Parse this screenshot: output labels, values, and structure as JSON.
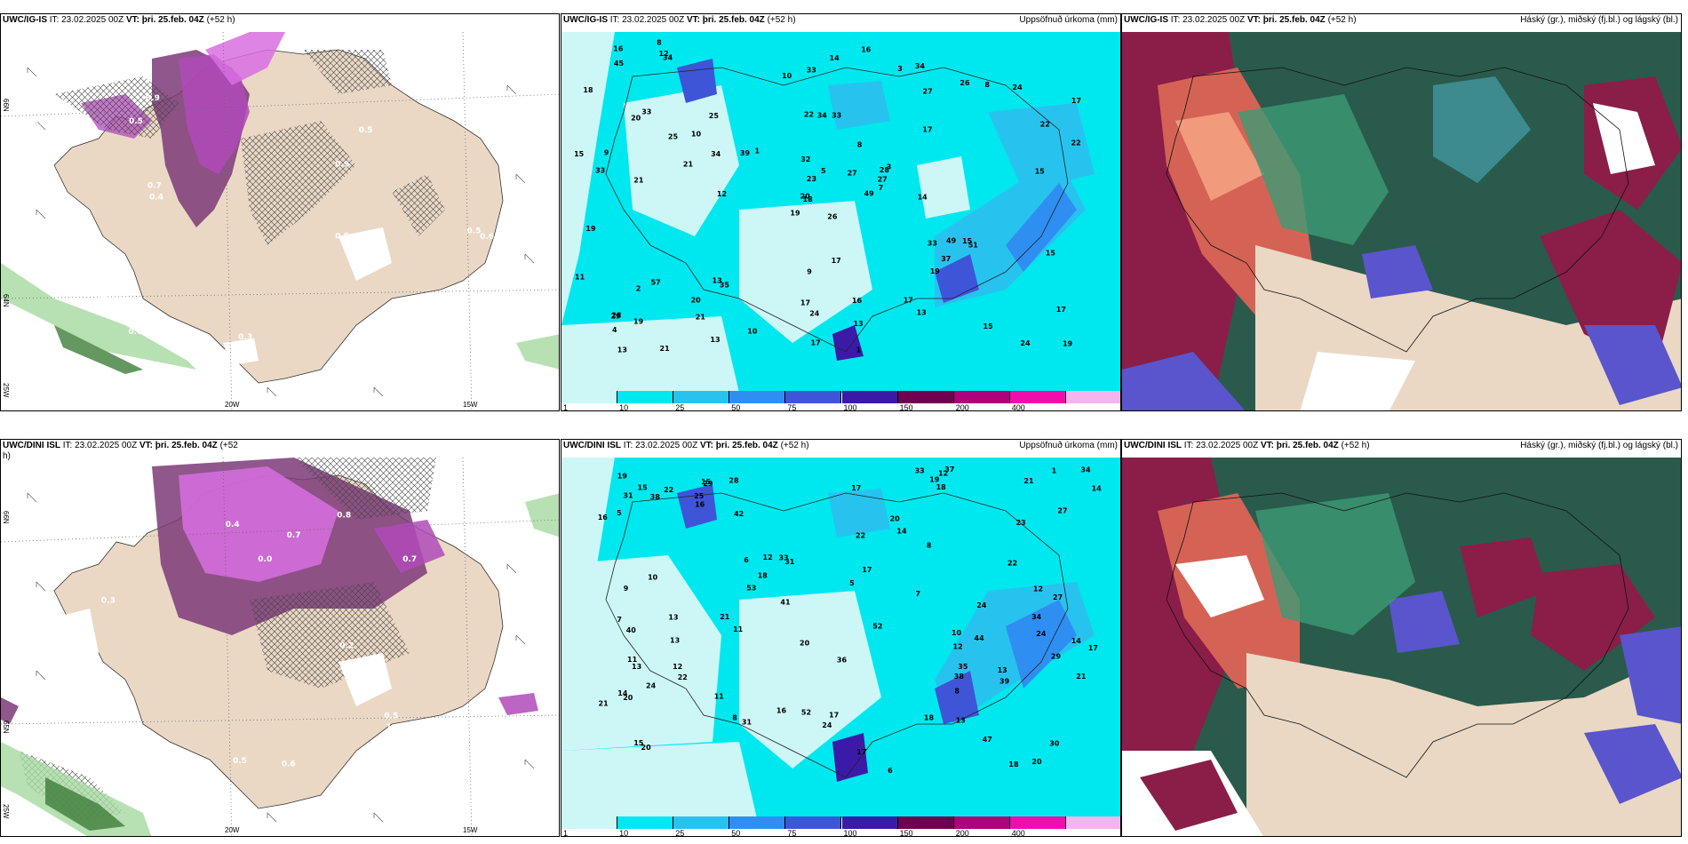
{
  "panels": {
    "ig_wind": {
      "model": "UWC/IG-IS",
      "run": "IT: 23.02.2025 00Z",
      "valid": "VT: þri. 25.feb. 04Z",
      "lead": "(+52 h)"
    },
    "ig_precip": {
      "model": "UWC/IG-IS",
      "run": "IT: 23.02.2025 00Z",
      "valid": "VT: þri. 25.feb. 04Z",
      "lead": "(+52 h)",
      "right_title": "Uppsöfnuð úrkoma (mm)"
    },
    "ig_cloud": {
      "model": "UWC/IG-IS",
      "run": "IT: 23.02.2025 00Z",
      "valid": "VT: þri. 25.feb. 04Z",
      "lead": "(+52 h)",
      "right_title": "Háský (gr.), miðský (fj.bl.) og lágský (bl.)"
    },
    "dini_wind": {
      "model": "UWC/DINI ISL",
      "run": "IT: 23.02.2025 00Z",
      "valid": "VT: þri. 25.feb. 04Z",
      "lead": "(+52",
      "lead2": "h)"
    },
    "dini_precip": {
      "model": "UWC/DINI ISL",
      "run": "IT: 23.02.2025 00Z",
      "valid": "VT: þri. 25.feb. 04Z",
      "lead": "(+52 h)",
      "right_title": "Uppsöfnuð úrkoma (mm)"
    },
    "dini_cloud": {
      "model": "UWC/DINI ISL",
      "run": "IT: 23.02.2025 00Z",
      "valid": "VT: þri. 25.feb. 04Z",
      "lead": "(+52 h)",
      "right_title": "Háský (gr.), miðský (fj.bl.) og lágský (bl.)"
    }
  },
  "axes": {
    "lon_20w": "20W",
    "lon_15w": "15W",
    "lat_66n": "66N",
    "lat_64n": "64N",
    "lat_65n": "65N",
    "lat_25w": "25W"
  },
  "colorbar": {
    "levels": [
      "1",
      "10",
      "25",
      "50",
      "75",
      "100",
      "150",
      "200",
      "400"
    ],
    "colors": [
      "#cdf7f7",
      "#00e8ef",
      "#27c3ee",
      "#2f8ef2",
      "#3f55d8",
      "#3b1aa8",
      "#700050",
      "#b0007a",
      "#f20cac",
      "#f6b4ef"
    ]
  },
  "precip_labels_ig": [
    "26",
    "20",
    "18",
    "28",
    "28",
    "35",
    "34",
    "33",
    "27",
    "49",
    "34",
    "19",
    "21",
    "17",
    "19",
    "17",
    "21",
    "22",
    "8",
    "57",
    "1",
    "4",
    "21",
    "34",
    "3",
    "51",
    "33",
    "33",
    "33",
    "33",
    "22",
    "20",
    "17",
    "23",
    "25",
    "26",
    "13",
    "24",
    "17",
    "15",
    "16",
    "39",
    "21",
    "19",
    "13",
    "15",
    "27",
    "13",
    "24",
    "7",
    "2",
    "22",
    "18",
    "37",
    "13",
    "20",
    "12",
    "16",
    "16",
    "24",
    "14",
    "12",
    "9",
    "10",
    "8",
    "8",
    "3",
    "10",
    "5",
    "11",
    "9",
    "10",
    "49",
    "34",
    "29",
    "45",
    "25",
    "19",
    "32",
    "13",
    "27",
    "19",
    "14",
    "15",
    "17",
    "15",
    "17",
    "15",
    "1",
    "17"
  ],
  "precip_labels_dini": [
    "12",
    "24",
    "15",
    "29",
    "31",
    "47",
    "20",
    "18",
    "6",
    "6",
    "5",
    "7",
    "31",
    "30",
    "16",
    "27",
    "36",
    "52",
    "33",
    "22",
    "34",
    "21",
    "53",
    "29",
    "33",
    "25",
    "35",
    "40",
    "16",
    "24",
    "17",
    "18",
    "18",
    "11",
    "34",
    "39",
    "38",
    "13",
    "17",
    "24",
    "27",
    "37",
    "20",
    "52",
    "13",
    "11",
    "21",
    "15",
    "7",
    "9",
    "17",
    "12",
    "1",
    "10",
    "8",
    "18",
    "8",
    "19",
    "13",
    "22",
    "44",
    "42",
    "17",
    "11",
    "17",
    "10",
    "20",
    "12",
    "21",
    "14",
    "14",
    "28",
    "41",
    "38",
    "5",
    "12",
    "13",
    "8",
    "31",
    "23",
    "21",
    "20",
    "19",
    "22",
    "12",
    "14",
    "15",
    "24",
    "14",
    "22",
    "13",
    "20",
    "16"
  ],
  "wind_labels_ig": [
    "0.4",
    "0.5",
    "0.9",
    "0.3",
    "0.7",
    "0.8",
    "0.5",
    "0.4",
    "0.3",
    "0.6",
    "0.5",
    "0.9",
    "0.5",
    "0.6",
    "0.6",
    "0.6",
    "0.7"
  ],
  "wind_labels_dini": [
    "0.0",
    "1.3",
    "0.9",
    "0.7",
    "0.5",
    "0.4",
    "0.6",
    "0.8",
    "0.3",
    "0.4",
    "0.5",
    "0.7",
    "0.2"
  ]
}
